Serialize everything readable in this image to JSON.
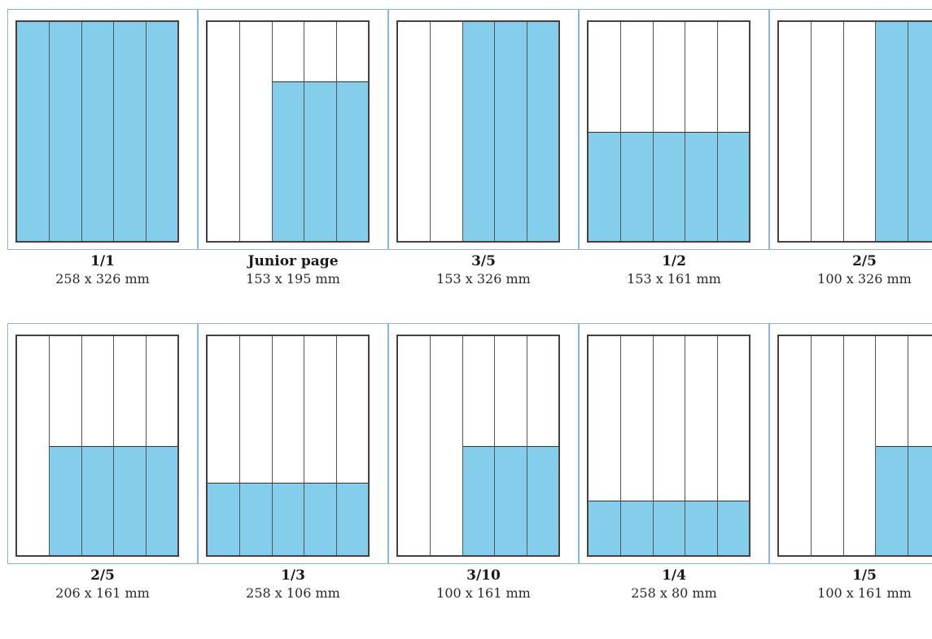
{
  "ad_formats": [
    {
      "label": "1/1",
      "size": "258 x 326 mm",
      "col_start": 0,
      "col_end": 5,
      "fill_top_fraction": 0.0
    },
    {
      "label": "Junior page",
      "size": "153 x 195 mm",
      "col_start": 2,
      "col_end": 5,
      "fill_top_fraction": 0.27
    },
    {
      "label": "3/5",
      "size": "153 x 326 mm",
      "col_start": 2,
      "col_end": 5,
      "fill_top_fraction": 0.0
    },
    {
      "label": "1/2",
      "size": "153 x 161 mm",
      "col_start": 0,
      "col_end": 5,
      "fill_top_fraction": 0.5
    },
    {
      "label": "2/5",
      "size": "100 x 326 mm",
      "col_start": 3,
      "col_end": 5,
      "fill_top_fraction": 0.0
    },
    {
      "label": "2/5",
      "size": "206 x 161 mm",
      "col_start": 1,
      "col_end": 5,
      "fill_top_fraction": 0.5
    },
    {
      "label": "1/3",
      "size": "258 x 106 mm",
      "col_start": 0,
      "col_end": 5,
      "fill_top_fraction": 0.67
    },
    {
      "label": "3/10",
      "size": "100 x 161 mm",
      "col_start": 2,
      "col_end": 5,
      "fill_top_fraction": 0.5
    },
    {
      "label": "1/4",
      "size": "258 x 80 mm",
      "col_start": 0,
      "col_end": 5,
      "fill_top_fraction": 0.75
    },
    {
      "label": "1/5",
      "size": "100 x 161 mm",
      "col_start": 3,
      "col_end": 5,
      "fill_top_fraction": 0.5
    }
  ],
  "colors": {
    "fill": "#84ceec",
    "frame_border": "#8cb4dd",
    "page_border": "#4a3f3f"
  }
}
